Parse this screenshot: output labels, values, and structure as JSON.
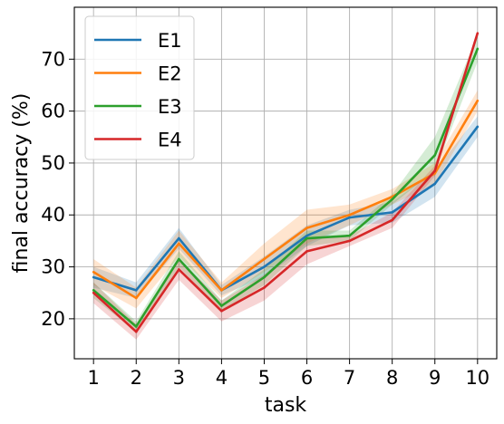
{
  "chart_data": {
    "type": "line",
    "xlabel": "task",
    "ylabel": "final accuracy (%)",
    "x": [
      1,
      2,
      3,
      4,
      5,
      6,
      7,
      8,
      9,
      10
    ],
    "xlim": [
      0.55,
      10.45
    ],
    "ylim": [
      12.3,
      80
    ],
    "xticks": [
      "1",
      "2",
      "3",
      "4",
      "5",
      "6",
      "7",
      "8",
      "9",
      "10"
    ],
    "yticks": [
      20,
      30,
      40,
      50,
      60,
      70
    ],
    "grid": true,
    "legend_position": "top-left",
    "series": [
      {
        "name": "E1",
        "color": "#1f77b4",
        "values": [
          28.0,
          25.5,
          35.5,
          25.5,
          30.0,
          36.0,
          39.5,
          40.5,
          46.0,
          57.0
        ],
        "lower": [
          26.0,
          24.0,
          33.5,
          24.5,
          28.0,
          34.0,
          38.0,
          38.5,
          43.5,
          55.0
        ],
        "upper": [
          30.0,
          27.0,
          37.5,
          26.5,
          32.0,
          38.0,
          41.0,
          42.5,
          48.5,
          59.0
        ]
      },
      {
        "name": "E2",
        "color": "#ff7f0e",
        "values": [
          29.0,
          24.0,
          34.5,
          25.5,
          31.5,
          37.5,
          40.0,
          43.5,
          48.0,
          62.0
        ],
        "lower": [
          26.5,
          22.0,
          32.0,
          24.0,
          29.0,
          34.5,
          38.0,
          42.0,
          46.0,
          60.0
        ],
        "upper": [
          31.5,
          26.0,
          37.0,
          27.0,
          34.5,
          41.0,
          42.0,
          45.0,
          50.0,
          64.0
        ]
      },
      {
        "name": "E3",
        "color": "#2ca02c",
        "values": [
          25.5,
          18.5,
          31.5,
          22.5,
          28.0,
          35.5,
          36.0,
          43.0,
          51.5,
          72.0
        ],
        "lower": [
          24.0,
          17.5,
          30.0,
          21.5,
          26.5,
          34.0,
          35.0,
          42.0,
          48.5,
          69.5
        ],
        "upper": [
          27.0,
          19.5,
          33.0,
          23.5,
          29.5,
          37.0,
          37.0,
          44.0,
          55.0,
          74.5
        ]
      },
      {
        "name": "E4",
        "color": "#d62728",
        "values": [
          25.0,
          17.5,
          29.5,
          21.5,
          26.0,
          33.0,
          35.0,
          39.0,
          48.5,
          75.0
        ],
        "lower": [
          23.0,
          16.0,
          27.5,
          19.5,
          23.5,
          30.5,
          34.0,
          37.5,
          47.5,
          74.5
        ],
        "upper": [
          27.0,
          19.0,
          31.5,
          23.5,
          28.5,
          35.5,
          36.0,
          40.5,
          49.5,
          75.5
        ]
      }
    ]
  }
}
